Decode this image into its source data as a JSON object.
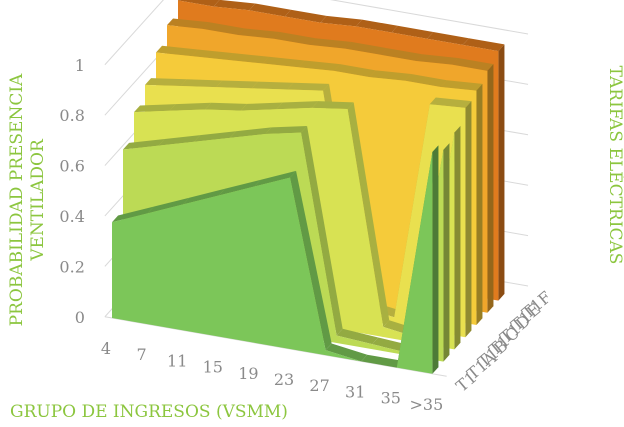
{
  "chart_data": {
    "type": "area",
    "view": "3d",
    "title": "",
    "xlabel": "GRUPO DE INGRESOS (VSMM)",
    "ylabel_lines": [
      "PROBABILIDAD PRESENCIA",
      "VENTILADOR"
    ],
    "zlabel": "TARIFAS ELÉCTRICAS",
    "categories": [
      "4",
      "7",
      "11",
      "15",
      "19",
      "23",
      "27",
      "31",
      "35",
      ">35"
    ],
    "y_ticks": [
      "0",
      "0.2",
      "0.4",
      "0.6",
      "0.8",
      "1"
    ],
    "ylim": [
      0,
      1
    ],
    "grid": true,
    "series": [
      {
        "name": "T1F",
        "color": "#e07b1e",
        "values": [
          0.97,
          0.97,
          0.98,
          0.98,
          0.98,
          0.99,
          0.99,
          0.99,
          0.99,
          0.99
        ]
      },
      {
        "name": "T1E",
        "color": "#f0a62b",
        "values": [
          0.92,
          0.93,
          0.93,
          0.94,
          0.94,
          0.95,
          0.95,
          0.95,
          0.96,
          0.96
        ]
      },
      {
        "name": "T1D",
        "color": "#f5cb3a",
        "values": [
          0.86,
          0.87,
          0.88,
          0.89,
          0.9,
          0.91,
          0.91,
          0.92,
          0.92,
          0.93
        ]
      },
      {
        "name": "T1C",
        "color": "#e9e04f",
        "values": [
          0.78,
          0.8,
          0.82,
          0.84,
          0.86,
          0.88,
          0.05,
          0.03,
          0.9,
          0.91
        ]
      },
      {
        "name": "T1B",
        "color": "#d8e253",
        "values": [
          0.72,
          0.75,
          0.78,
          0.8,
          0.83,
          0.86,
          0.88,
          0.04,
          0.02,
          0.86
        ]
      },
      {
        "name": "T1A",
        "color": "#bcda55",
        "values": [
          0.62,
          0.66,
          0.7,
          0.74,
          0.78,
          0.81,
          0.03,
          0.02,
          0.01,
          0.84
        ]
      },
      {
        "name": "T1",
        "color": "#7cc659",
        "values": [
          0.38,
          0.44,
          0.5,
          0.56,
          0.62,
          0.68,
          0.02,
          0.0,
          0.0,
          0.88
        ]
      }
    ]
  }
}
